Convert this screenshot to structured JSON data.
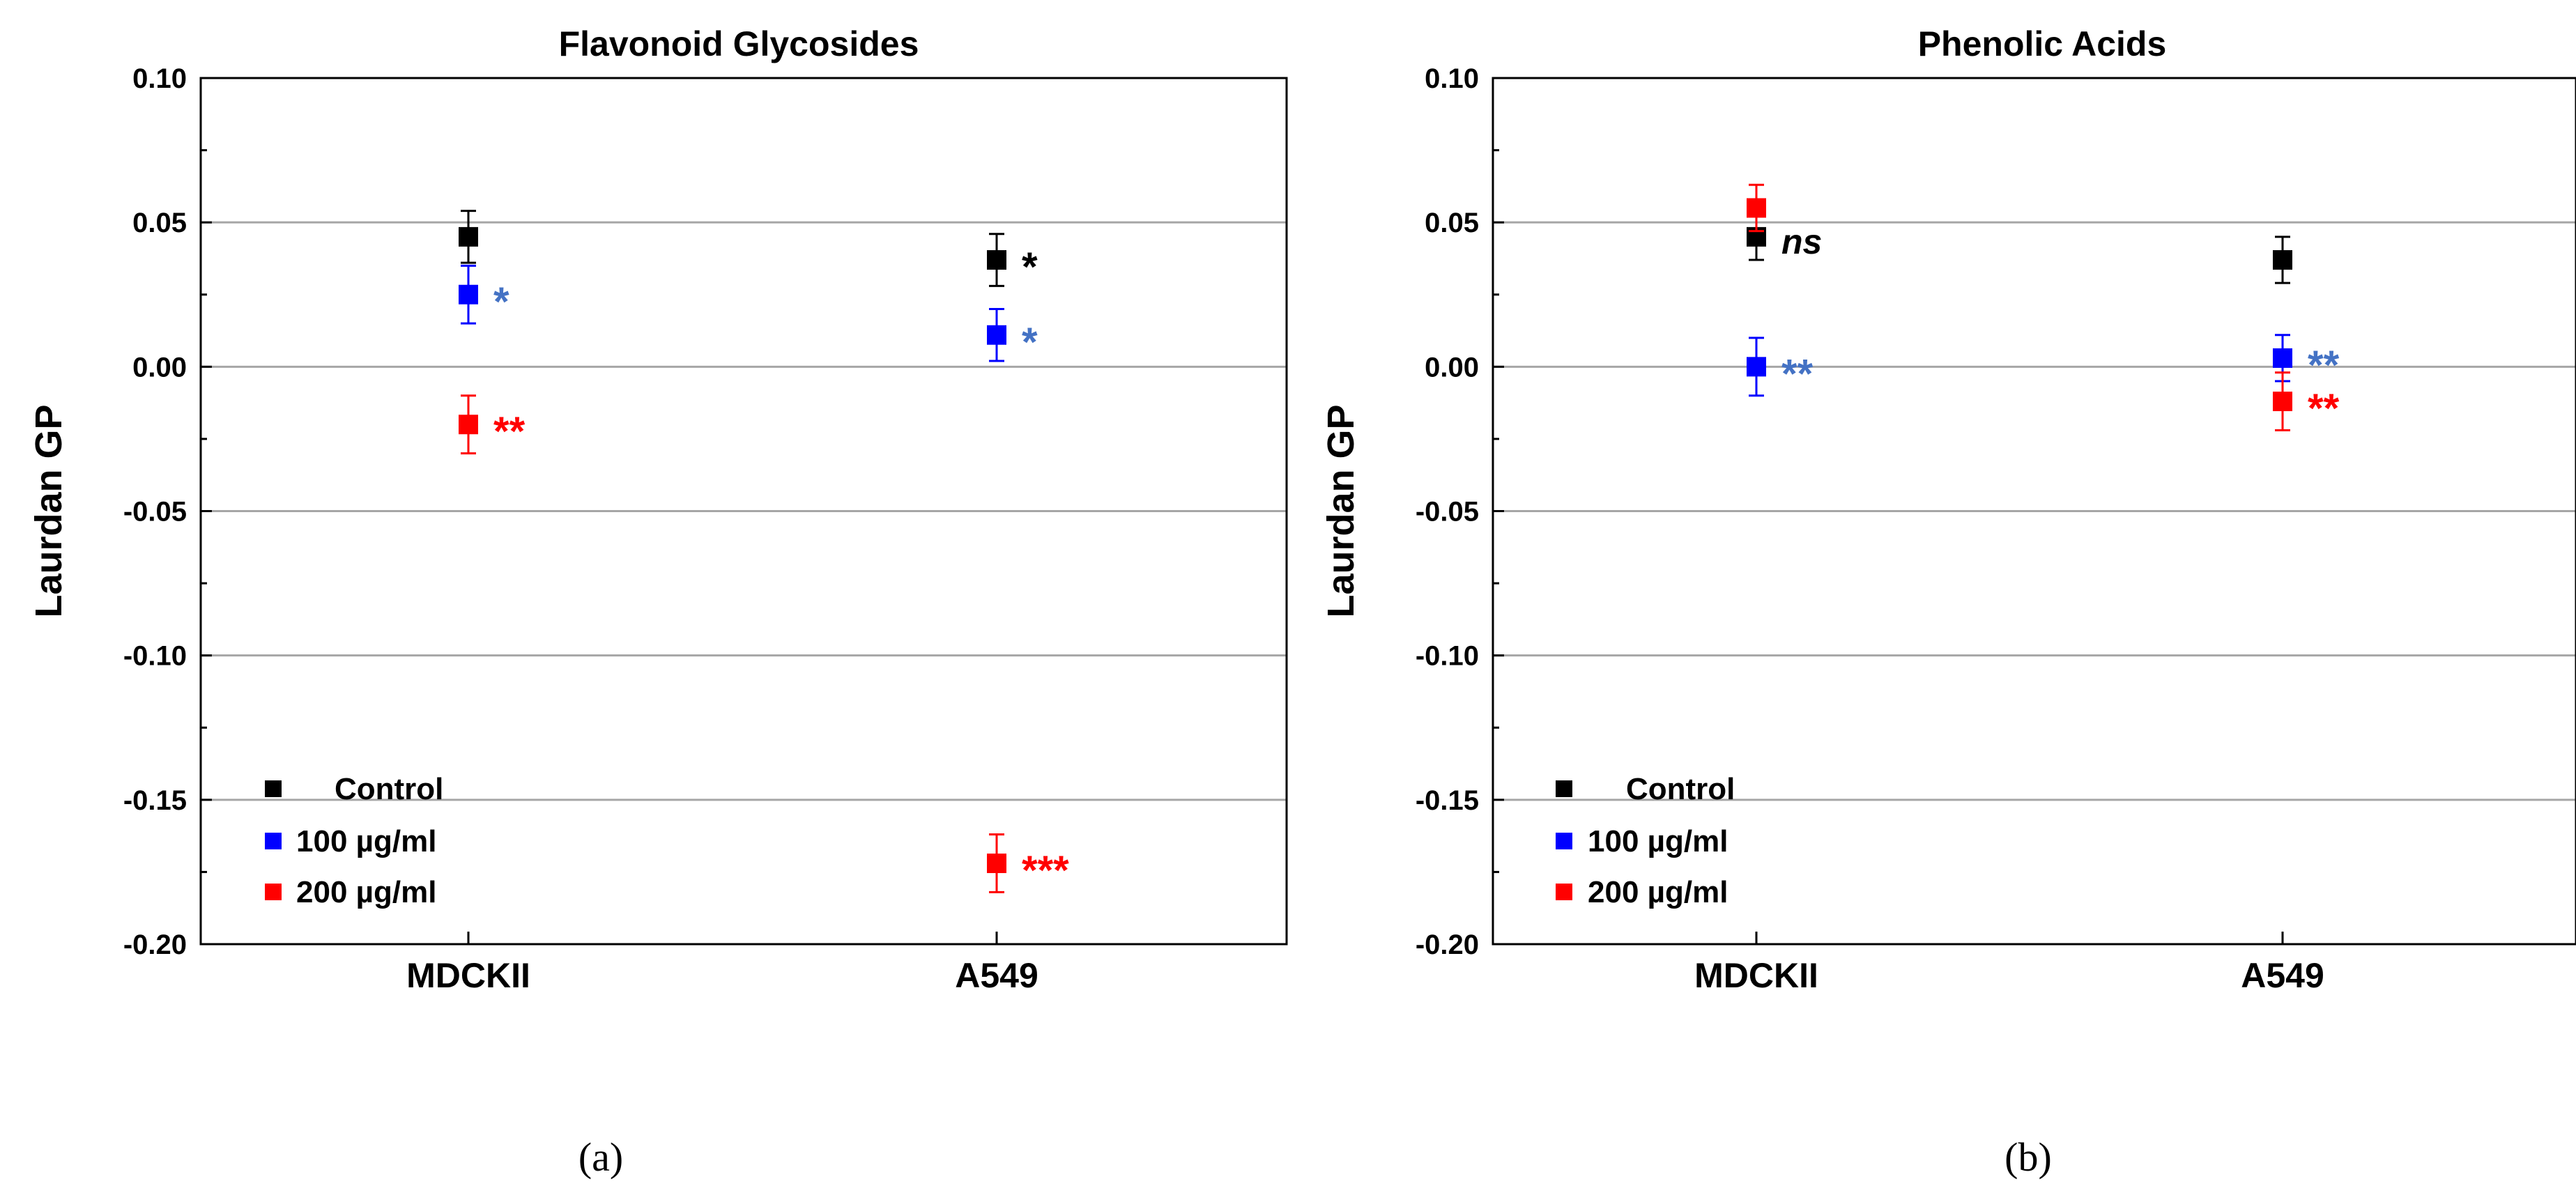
{
  "chart_data": [
    {
      "type": "scatter",
      "title": "Flavonoid Glycosides",
      "ylabel": "Laurdan GP",
      "xlabel": "",
      "categories": [
        "MDCKII",
        "A549"
      ],
      "ylim": [
        -0.2,
        0.1
      ],
      "yticks": [
        0.1,
        0.05,
        0.0,
        -0.05,
        -0.1,
        -0.15,
        -0.2
      ],
      "ytick_labels": [
        "0.10",
        "0.05",
        "0.00",
        "-0.05",
        "-0.10",
        "-0.15",
        "-0.20"
      ],
      "grid": true,
      "legend_position": "bottom-left",
      "panel_label": "(a)",
      "series": [
        {
          "name": "Control",
          "color": "#000000",
          "values": [
            0.045,
            0.037
          ],
          "errors": [
            0.009,
            0.009
          ],
          "significance": [
            "",
            "*"
          ]
        },
        {
          "name": "100 µg/ml",
          "color": "#0000ff",
          "values": [
            0.025,
            0.011
          ],
          "errors": [
            0.01,
            0.009
          ],
          "significance": [
            "*",
            "*"
          ]
        },
        {
          "name": "200 µg/ml",
          "color": "#ff0000",
          "values": [
            -0.02,
            -0.172
          ],
          "errors": [
            0.01,
            0.01
          ],
          "significance": [
            "**",
            "***"
          ]
        }
      ],
      "annotations": []
    },
    {
      "type": "scatter",
      "title": "Phenolic Acids",
      "ylabel": "Laurdan GP",
      "xlabel": "",
      "categories": [
        "MDCKII",
        "A549"
      ],
      "ylim": [
        -0.2,
        0.1
      ],
      "yticks": [
        0.1,
        0.05,
        0.0,
        -0.05,
        -0.1,
        -0.15,
        -0.2
      ],
      "ytick_labels": [
        "0.10",
        "0.05",
        "0.00",
        "-0.05",
        "-0.10",
        "-0.15",
        "-0.20"
      ],
      "grid": true,
      "legend_position": "bottom-left",
      "panel_label": "(b)",
      "series": [
        {
          "name": "Control",
          "color": "#000000",
          "values": [
            0.045,
            0.037
          ],
          "errors": [
            0.008,
            0.008
          ],
          "significance": [
            "",
            ""
          ]
        },
        {
          "name": "100 µg/ml",
          "color": "#0000ff",
          "values": [
            0.0,
            0.003
          ],
          "errors": [
            0.01,
            0.008
          ],
          "significance": [
            "**",
            "**"
          ]
        },
        {
          "name": "200 µg/ml",
          "color": "#ff0000",
          "values": [
            0.055,
            -0.012
          ],
          "errors": [
            0.008,
            0.01
          ],
          "significance": [
            "",
            "**"
          ]
        }
      ],
      "annotations": [
        {
          "text": "ns",
          "category": "MDCKII",
          "y": 0.043,
          "style": "italic"
        }
      ]
    }
  ],
  "colors": {
    "sig_blue": "#4472c4",
    "sig_red": "#ff0000",
    "sig_black": "#000000",
    "grid": "#a6a6a6"
  }
}
